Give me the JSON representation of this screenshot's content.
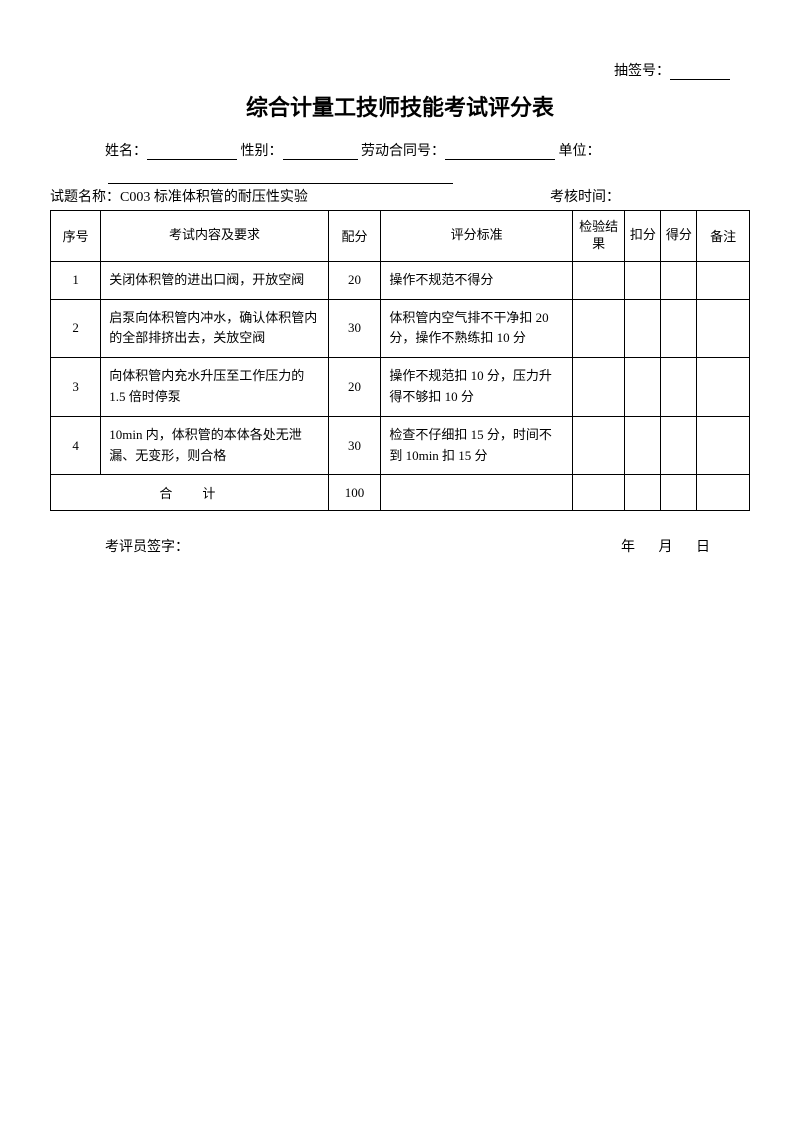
{
  "header": {
    "draw_label": "抽签号：",
    "title": "综合计量工技师技能考试评分表",
    "name_label": "姓名：",
    "gender_label": "性别：",
    "contract_label": "劳动合同号：",
    "unit_label": "单位：",
    "test_name_label": "试题名称：",
    "test_name_value": "C003  标准体积管的耐压性实验",
    "exam_time_label": "考核时间："
  },
  "table": {
    "columns": {
      "seq": "序号",
      "content": "考试内容及要求",
      "score": "配分",
      "criteria": "评分标准",
      "result": "检验结果",
      "deduct": "扣分",
      "gain": "得分",
      "remark": "备注"
    },
    "rows": [
      {
        "seq": "1",
        "content": "关闭体积管的进出口阀，开放空阀",
        "score": "20",
        "criteria": "操作不规范不得分"
      },
      {
        "seq": "2",
        "content": "启泵向体积管内冲水，确认体积管内的全部排挤出去，关放空阀",
        "score": "30",
        "criteria": "体积管内空气排不干净扣 20 分，操作不熟练扣 10 分"
      },
      {
        "seq": "3",
        "content": "向体积管内充水升压至工作压力的 1.5 倍时停泵",
        "score": "20",
        "criteria": "操作不规范扣 10 分，压力升得不够扣 10 分"
      },
      {
        "seq": "4",
        "content": "10min 内，体积管的本体各处无泄漏、无变形，则合格",
        "score": "30",
        "criteria": "检查不仔细扣 15 分，时间不到 10min 扣 15 分"
      }
    ],
    "total_label": "合计",
    "total_score": "100"
  },
  "footer": {
    "signature_label": "考评员签字：",
    "year": "年",
    "month": "月",
    "day": "日"
  }
}
